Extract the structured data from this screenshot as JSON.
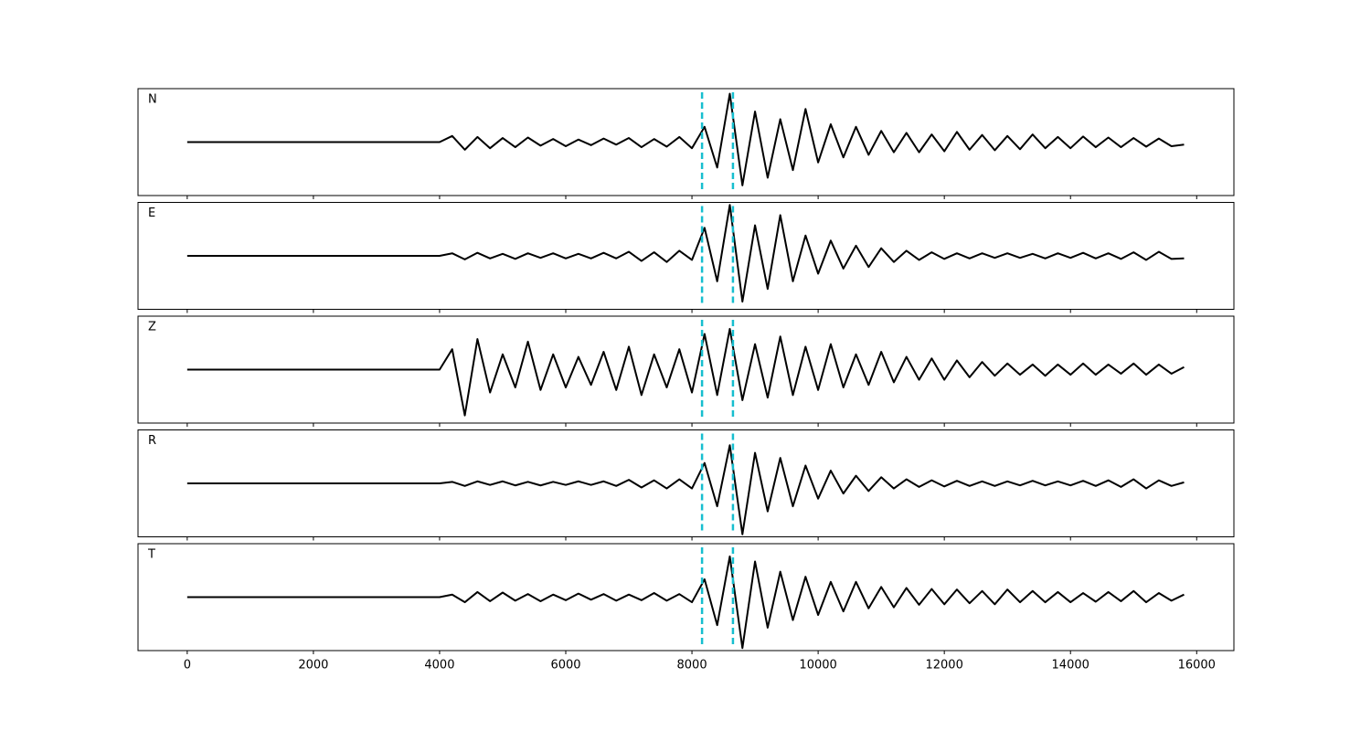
{
  "chart_data": {
    "type": "line",
    "x": [
      0,
      200,
      400,
      600,
      800,
      1000,
      1200,
      1400,
      1600,
      1800,
      2000,
      2200,
      2400,
      2600,
      2800,
      3000,
      3200,
      3400,
      3600,
      3800,
      4000,
      4200,
      4400,
      4600,
      4800,
      5000,
      5200,
      5400,
      5600,
      5800,
      6000,
      6200,
      6400,
      6600,
      6800,
      7000,
      7200,
      7400,
      7600,
      7800,
      8000,
      8200,
      8400,
      8600,
      8800,
      9000,
      9200,
      9400,
      9600,
      9800,
      10000,
      10200,
      10400,
      10600,
      10800,
      11000,
      11200,
      11400,
      11600,
      11800,
      12000,
      12200,
      12400,
      12600,
      12800,
      13000,
      13200,
      13400,
      13600,
      13800,
      14000,
      14200,
      14400,
      14600,
      14800,
      15000,
      15200,
      15400,
      15600,
      15800
    ],
    "xlim": [
      -780,
      16590
    ],
    "xticks": [
      0,
      2000,
      4000,
      6000,
      8000,
      10000,
      12000,
      14000,
      16000
    ],
    "ylim": [
      -1.05,
      1.05
    ],
    "vlines": [
      8160,
      8650
    ],
    "vline_color": "#17becf",
    "series": [
      {
        "name": "N",
        "color": "#000000",
        "values": [
          0,
          0,
          0,
          0,
          0,
          0,
          0,
          0,
          0,
          0,
          0,
          0,
          0,
          0,
          0,
          0,
          0,
          0,
          0,
          0,
          0,
          0.12,
          -0.15,
          0.1,
          -0.12,
          0.08,
          -0.1,
          0.09,
          -0.07,
          0.06,
          -0.08,
          0.05,
          -0.06,
          0.07,
          -0.05,
          0.08,
          -0.1,
          0.06,
          -0.09,
          0.1,
          -0.12,
          0.3,
          -0.5,
          0.95,
          -0.85,
          0.6,
          -0.7,
          0.45,
          -0.55,
          0.65,
          -0.4,
          0.35,
          -0.3,
          0.3,
          -0.25,
          0.22,
          -0.2,
          0.18,
          -0.2,
          0.15,
          -0.18,
          0.2,
          -0.15,
          0.14,
          -0.16,
          0.12,
          -0.14,
          0.15,
          -0.12,
          0.1,
          -0.12,
          0.11,
          -0.1,
          0.09,
          -0.1,
          0.08,
          -0.09,
          0.07,
          -0.08,
          -0.05
        ]
      },
      {
        "name": "E",
        "color": "#000000",
        "values": [
          0,
          0,
          0,
          0,
          0,
          0,
          0,
          0,
          0,
          0,
          0,
          0,
          0,
          0,
          0,
          0,
          0,
          0,
          0,
          0,
          0,
          0.05,
          -0.07,
          0.06,
          -0.05,
          0.04,
          -0.06,
          0.05,
          -0.04,
          0.05,
          -0.05,
          0.04,
          -0.05,
          0.06,
          -0.05,
          0.08,
          -0.1,
          0.07,
          -0.12,
          0.1,
          -0.08,
          0.55,
          -0.5,
          1.0,
          -0.9,
          0.6,
          -0.65,
          0.8,
          -0.5,
          0.4,
          -0.35,
          0.3,
          -0.25,
          0.2,
          -0.22,
          0.15,
          -0.12,
          0.1,
          -0.08,
          0.07,
          -0.06,
          0.05,
          -0.05,
          0.05,
          -0.04,
          0.05,
          -0.04,
          0.04,
          -0.05,
          0.05,
          -0.04,
          0.06,
          -0.05,
          0.05,
          -0.06,
          0.07,
          -0.08,
          0.08,
          -0.06,
          -0.05
        ]
      },
      {
        "name": "Z",
        "color": "#000000",
        "values": [
          0,
          0,
          0,
          0,
          0,
          0,
          0,
          0,
          0,
          0,
          0,
          0,
          0,
          0,
          0,
          0,
          0,
          0,
          0,
          0,
          0,
          0.4,
          -0.9,
          0.6,
          -0.45,
          0.3,
          -0.35,
          0.55,
          -0.4,
          0.3,
          -0.35,
          0.25,
          -0.3,
          0.35,
          -0.4,
          0.45,
          -0.5,
          0.3,
          -0.35,
          0.4,
          -0.45,
          0.7,
          -0.5,
          0.8,
          -0.6,
          0.5,
          -0.55,
          0.65,
          -0.5,
          0.45,
          -0.4,
          0.5,
          -0.35,
          0.3,
          -0.3,
          0.35,
          -0.25,
          0.25,
          -0.2,
          0.22,
          -0.2,
          0.18,
          -0.15,
          0.15,
          -0.12,
          0.12,
          -0.1,
          0.1,
          -0.12,
          0.1,
          -0.1,
          0.12,
          -0.1,
          0.1,
          -0.08,
          0.12,
          -0.1,
          0.1,
          -0.08,
          0.05
        ]
      },
      {
        "name": "R",
        "color": "#000000",
        "values": [
          0,
          0,
          0,
          0,
          0,
          0,
          0,
          0,
          0,
          0,
          0,
          0,
          0,
          0,
          0,
          0,
          0,
          0,
          0,
          0,
          0,
          0.03,
          -0.05,
          0.04,
          -0.03,
          0.04,
          -0.04,
          0.03,
          -0.04,
          0.03,
          -0.03,
          0.04,
          -0.03,
          0.04,
          -0.05,
          0.07,
          -0.08,
          0.06,
          -0.1,
          0.08,
          -0.1,
          0.4,
          -0.45,
          0.75,
          -1.0,
          0.6,
          -0.55,
          0.5,
          -0.45,
          0.35,
          -0.3,
          0.25,
          -0.2,
          0.15,
          -0.15,
          0.12,
          -0.1,
          0.08,
          -0.07,
          0.06,
          -0.06,
          0.05,
          -0.05,
          0.04,
          -0.05,
          0.04,
          -0.04,
          0.05,
          -0.04,
          0.04,
          -0.04,
          0.05,
          -0.05,
          0.06,
          -0.07,
          0.08,
          -0.1,
          0.06,
          -0.05,
          0.02
        ]
      },
      {
        "name": "T",
        "color": "#000000",
        "values": [
          0,
          0,
          0,
          0,
          0,
          0,
          0,
          0,
          0,
          0,
          0,
          0,
          0,
          0,
          0,
          0,
          0,
          0,
          0,
          0,
          0,
          0.05,
          -0.1,
          0.1,
          -0.08,
          0.09,
          -0.07,
          0.06,
          -0.08,
          0.05,
          -0.06,
          0.07,
          -0.05,
          0.06,
          -0.07,
          0.05,
          -0.06,
          0.08,
          -0.07,
          0.06,
          -0.1,
          0.35,
          -0.55,
          0.8,
          -1.0,
          0.7,
          -0.6,
          0.5,
          -0.45,
          0.4,
          -0.35,
          0.3,
          -0.28,
          0.3,
          -0.22,
          0.2,
          -0.2,
          0.18,
          -0.15,
          0.16,
          -0.14,
          0.15,
          -0.12,
          0.12,
          -0.14,
          0.15,
          -0.1,
          0.12,
          -0.1,
          0.1,
          -0.1,
          0.08,
          -0.09,
          0.1,
          -0.08,
          0.12,
          -0.1,
          0.08,
          -0.07,
          0.05
        ]
      }
    ]
  }
}
